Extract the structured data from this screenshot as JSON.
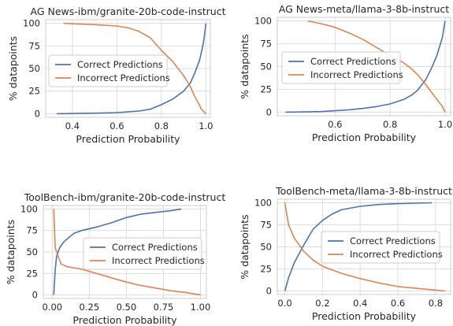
{
  "chart_data": [
    {
      "type": "line",
      "title": "AG News-ibm/granite-20b-code-instruct",
      "xlabel": "Prediction Probability",
      "ylabel": "% datapoints",
      "xlim": [
        0.28,
        1.02
      ],
      "ylim": [
        -4,
        104
      ],
      "xticks": [
        0.4,
        0.6,
        0.8,
        1.0
      ],
      "xtick_labels": [
        "0.4",
        "0.6",
        "0.8",
        "1.0"
      ],
      "yticks": [
        0,
        25,
        50,
        75,
        100
      ],
      "ytick_labels": [
        "0",
        "25",
        "50",
        "75",
        "100"
      ],
      "grid": true,
      "legend_position": "center-left",
      "series": [
        {
          "name": "Correct Predictions",
          "color": "#4c72b0",
          "points": [
            [
              0.33,
              0
            ],
            [
              0.4,
              0.2
            ],
            [
              0.5,
              0.6
            ],
            [
              0.6,
              1.2
            ],
            [
              0.65,
              2
            ],
            [
              0.7,
              3
            ],
            [
              0.75,
              5
            ],
            [
              0.8,
              10
            ],
            [
              0.85,
              16
            ],
            [
              0.9,
              25
            ],
            [
              0.93,
              34
            ],
            [
              0.95,
              45
            ],
            [
              0.97,
              58
            ],
            [
              0.98,
              68
            ],
            [
              0.99,
              80
            ],
            [
              1.0,
              100
            ]
          ]
        },
        {
          "name": "Incorrect Predictions",
          "color": "#dd8452",
          "points": [
            [
              0.36,
              100
            ],
            [
              0.4,
              99.5
            ],
            [
              0.5,
              98.5
            ],
            [
              0.6,
              97
            ],
            [
              0.65,
              95
            ],
            [
              0.7,
              91
            ],
            [
              0.75,
              84
            ],
            [
              0.8,
              70
            ],
            [
              0.85,
              58
            ],
            [
              0.9,
              42
            ],
            [
              0.93,
              30
            ],
            [
              0.95,
              19
            ],
            [
              0.97,
              10
            ],
            [
              0.98,
              5
            ],
            [
              1.0,
              0
            ]
          ]
        }
      ]
    },
    {
      "type": "line",
      "title": "AG News-meta/llama-3-8b-instruct",
      "xlabel": "Prediction Probability",
      "ylabel": "% datapoints",
      "xlim": [
        0.39,
        1.02
      ],
      "ylim": [
        -4,
        104
      ],
      "xticks": [
        0.6,
        0.8,
        1.0
      ],
      "xtick_labels": [
        "0.6",
        "0.8",
        "1.0"
      ],
      "yticks": [
        0,
        25,
        50,
        75,
        100
      ],
      "ytick_labels": [
        "0",
        "25",
        "50",
        "75",
        "100"
      ],
      "grid": true,
      "legend_position": "center-left",
      "series": [
        {
          "name": "Correct Predictions",
          "color": "#4c72b0",
          "points": [
            [
              0.42,
              0
            ],
            [
              0.5,
              0.2
            ],
            [
              0.55,
              0.6
            ],
            [
              0.6,
              1.5
            ],
            [
              0.65,
              2.5
            ],
            [
              0.7,
              4
            ],
            [
              0.75,
              6
            ],
            [
              0.8,
              9
            ],
            [
              0.85,
              14
            ],
            [
              0.88,
              19
            ],
            [
              0.9,
              24
            ],
            [
              0.93,
              36
            ],
            [
              0.95,
              48
            ],
            [
              0.97,
              62
            ],
            [
              0.99,
              82
            ],
            [
              1.0,
              100
            ]
          ]
        },
        {
          "name": "Incorrect Predictions",
          "color": "#dd8452",
          "points": [
            [
              0.5,
              100
            ],
            [
              0.55,
              97
            ],
            [
              0.6,
              93
            ],
            [
              0.65,
              87
            ],
            [
              0.7,
              80
            ],
            [
              0.75,
              71
            ],
            [
              0.8,
              62
            ],
            [
              0.85,
              54
            ],
            [
              0.88,
              47
            ],
            [
              0.9,
              41
            ],
            [
              0.93,
              30
            ],
            [
              0.95,
              22
            ],
            [
              0.97,
              14
            ],
            [
              0.99,
              6
            ],
            [
              1.0,
              0
            ]
          ]
        }
      ]
    },
    {
      "type": "line",
      "title": "ToolBench-ibm/granite-20b-code-instruct",
      "xlabel": "Prediction Probability",
      "ylabel": "% datapoints",
      "xlim": [
        -0.06,
        1.04
      ],
      "ylim": [
        -4,
        104
      ],
      "xticks": [
        0.0,
        0.25,
        0.5,
        0.75,
        1.0
      ],
      "xtick_labels": [
        "0.00",
        "0.25",
        "0.50",
        "0.75",
        "1.00"
      ],
      "yticks": [
        0,
        25,
        50,
        75,
        100
      ],
      "ytick_labels": [
        "0",
        "25",
        "50",
        "75",
        "100"
      ],
      "grid": true,
      "legend_position": "center-right",
      "series": [
        {
          "name": "Correct Predictions",
          "color": "#4c72b0",
          "points": [
            [
              0.01,
              0
            ],
            [
              0.02,
              30
            ],
            [
              0.03,
              45
            ],
            [
              0.05,
              55
            ],
            [
              0.08,
              62
            ],
            [
              0.12,
              68
            ],
            [
              0.15,
              72
            ],
            [
              0.2,
              75
            ],
            [
              0.3,
              79
            ],
            [
              0.4,
              84
            ],
            [
              0.5,
              90
            ],
            [
              0.6,
              94
            ],
            [
              0.7,
              96
            ],
            [
              0.8,
              98
            ],
            [
              0.87,
              100
            ]
          ]
        },
        {
          "name": "Incorrect Predictions",
          "color": "#dd8452",
          "points": [
            [
              0.01,
              100
            ],
            [
              0.02,
              55
            ],
            [
              0.04,
              45
            ],
            [
              0.06,
              36
            ],
            [
              0.1,
              33
            ],
            [
              0.2,
              30
            ],
            [
              0.3,
              25
            ],
            [
              0.4,
              20
            ],
            [
              0.5,
              15
            ],
            [
              0.6,
              11
            ],
            [
              0.7,
              8
            ],
            [
              0.8,
              5
            ],
            [
              0.9,
              3
            ],
            [
              1.0,
              0
            ]
          ]
        }
      ]
    },
    {
      "type": "line",
      "title": "ToolBench-meta/llama-3-8b-instruct",
      "xlabel": "Prediction Probability",
      "ylabel": "% datapoints",
      "xlim": [
        -0.04,
        0.88
      ],
      "ylim": [
        -4,
        104
      ],
      "xticks": [
        0.0,
        0.2,
        0.4,
        0.6,
        0.8
      ],
      "xtick_labels": [
        "0.0",
        "0.2",
        "0.4",
        "0.6",
        "0.8"
      ],
      "yticks": [
        0,
        25,
        50,
        75,
        100
      ],
      "ytick_labels": [
        "0",
        "25",
        "50",
        "75",
        "100"
      ],
      "grid": true,
      "legend_position": "center-right",
      "series": [
        {
          "name": "Correct Predictions",
          "color": "#4c72b0",
          "points": [
            [
              0.0,
              0
            ],
            [
              0.02,
              15
            ],
            [
              0.05,
              32
            ],
            [
              0.1,
              52
            ],
            [
              0.15,
              70
            ],
            [
              0.2,
              80
            ],
            [
              0.25,
              87
            ],
            [
              0.3,
              92
            ],
            [
              0.4,
              96
            ],
            [
              0.5,
              98
            ],
            [
              0.6,
              99
            ],
            [
              0.7,
              99.5
            ],
            [
              0.78,
              100
            ]
          ]
        },
        {
          "name": "Incorrect Predictions",
          "color": "#dd8452",
          "points": [
            [
              0.0,
              100
            ],
            [
              0.02,
              75
            ],
            [
              0.05,
              60
            ],
            [
              0.1,
              45
            ],
            [
              0.15,
              35
            ],
            [
              0.2,
              28
            ],
            [
              0.3,
              20
            ],
            [
              0.4,
              14
            ],
            [
              0.5,
              9
            ],
            [
              0.6,
              5
            ],
            [
              0.7,
              3
            ],
            [
              0.8,
              1
            ],
            [
              0.85,
              0
            ]
          ]
        }
      ]
    }
  ]
}
